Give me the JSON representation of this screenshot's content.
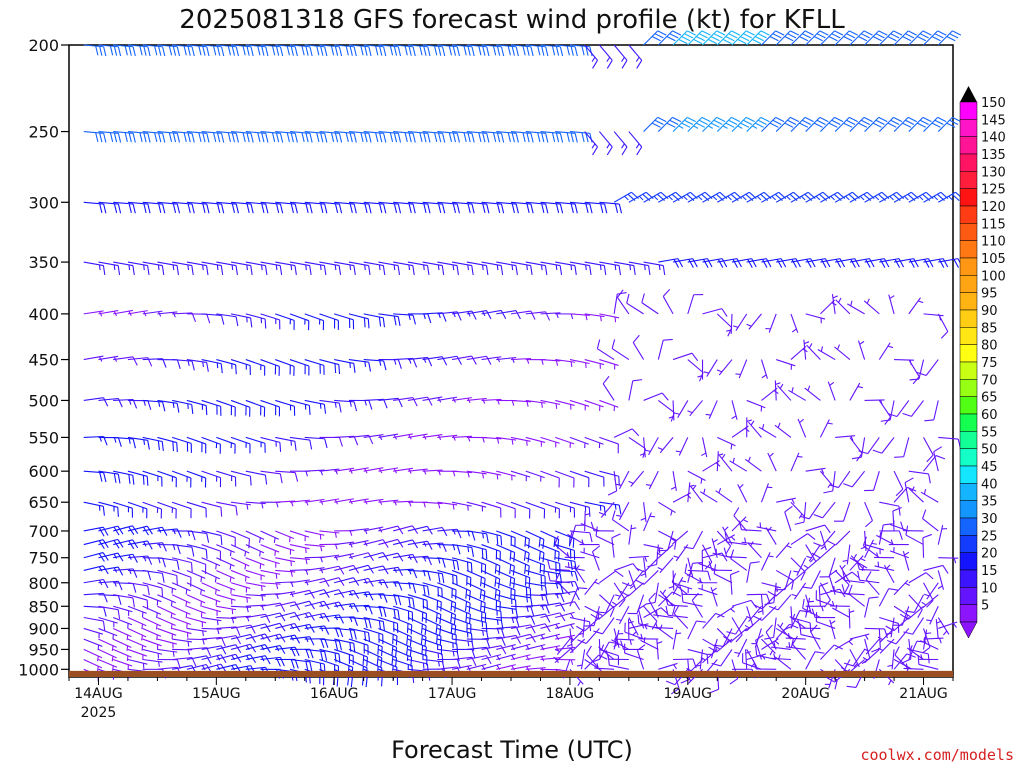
{
  "title": "2025081318 GFS forecast wind profile (kt) for KFLL",
  "credit": "coolwx.com/models",
  "chart_data": {
    "type": "wind-barb time-height",
    "xlabel": "Forecast Time (UTC)",
    "ylabel": "",
    "x_ticks": [
      {
        "label": "14AUG",
        "sub": "2025",
        "hour": 6
      },
      {
        "label": "15AUG",
        "sub": "",
        "hour": 30
      },
      {
        "label": "16AUG",
        "sub": "",
        "hour": 54
      },
      {
        "label": "17AUG",
        "sub": "",
        "hour": 78
      },
      {
        "label": "18AUG",
        "sub": "",
        "hour": 102
      },
      {
        "label": "19AUG",
        "sub": "",
        "hour": 126
      },
      {
        "label": "20AUG",
        "sub": "",
        "hour": 150
      },
      {
        "label": "21AUG",
        "sub": "",
        "hour": 174
      }
    ],
    "xlim_hours": [
      0,
      180
    ],
    "y_ticks": [
      "200",
      "250",
      "300",
      "350",
      "400",
      "450",
      "500",
      "550",
      "600",
      "650",
      "700",
      "750",
      "800",
      "850",
      "900",
      "950",
      "1000"
    ],
    "ylim_hpa": [
      200,
      1020
    ],
    "y_scale": "log-pressure",
    "levels_hpa": [
      1000,
      975,
      950,
      925,
      900,
      875,
      850,
      825,
      800,
      775,
      750,
      725,
      700,
      650,
      600,
      550,
      500,
      450,
      400,
      350,
      300,
      250,
      200
    ],
    "times_hours": [
      3,
      6,
      9,
      12,
      15,
      18,
      21,
      24,
      27,
      30,
      33,
      36,
      39,
      42,
      45,
      48,
      51,
      54,
      57,
      60,
      63,
      66,
      69,
      72,
      75,
      78,
      81,
      84,
      87,
      90,
      93,
      96,
      99,
      102,
      105,
      108,
      111,
      114,
      117,
      120,
      123,
      126,
      129,
      132,
      135,
      138,
      141,
      144,
      147,
      150,
      153,
      156,
      159,
      162,
      165,
      168,
      171,
      174,
      177
    ],
    "wind_description": "Low levels (1000-700 hPa) mostly easterly 10-20 kt through 18AUG, becoming light and variable 18-21AUG; mid levels (650-450 hPa) easterly 10-25 kt; upper levels (300-200 hPa) easterly 25-40 kt, northeasterly 30-40 kt on 19-21AUG.",
    "colorbar": {
      "labels": [
        "150",
        "145",
        "140",
        "135",
        "130",
        "125",
        "120",
        "115",
        "110",
        "105",
        "100",
        "95",
        "90",
        "85",
        "80",
        "75",
        "70",
        "65",
        "60",
        "55",
        "50",
        "45",
        "40",
        "35",
        "30",
        "25",
        "20",
        "15",
        "10",
        "5"
      ],
      "colors": [
        "#ff00ff",
        "#ff14c8",
        "#ff1496",
        "#ff1464",
        "#ff1e3c",
        "#ff1414",
        "#ff3c14",
        "#ff5a14",
        "#ff7814",
        "#ff9614",
        "#ffa514",
        "#ffb414",
        "#ffcd14",
        "#ffe614",
        "#ffff14",
        "#c8ff14",
        "#96ff14",
        "#50ff14",
        "#14ff50",
        "#14ff96",
        "#14ffc8",
        "#14e6ff",
        "#14b4ff",
        "#1496ff",
        "#1464ff",
        "#143cff",
        "#1414ff",
        "#3c14ff",
        "#6414ff",
        "#8c14ff"
      ]
    },
    "terrain_color": "#9b4e21"
  }
}
